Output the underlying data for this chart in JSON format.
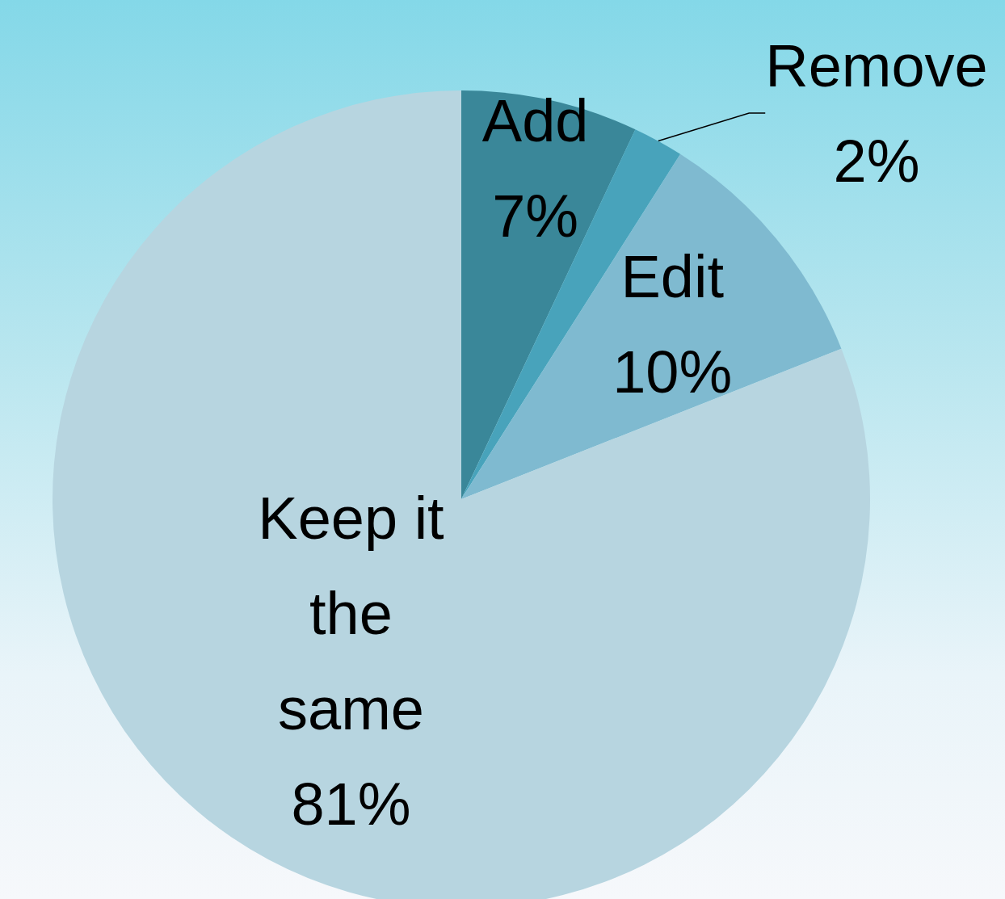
{
  "chart_data": {
    "type": "pie",
    "categories": [
      "Add",
      "Remove",
      "Edit",
      "Keep it the same"
    ],
    "values": [
      7,
      2,
      10,
      81
    ],
    "value_labels": [
      "7%",
      "2%",
      "10%",
      "81%"
    ],
    "colors": [
      "#3a8799",
      "#48a3bb",
      "#7fbad0",
      "#b7d5e0"
    ]
  }
}
